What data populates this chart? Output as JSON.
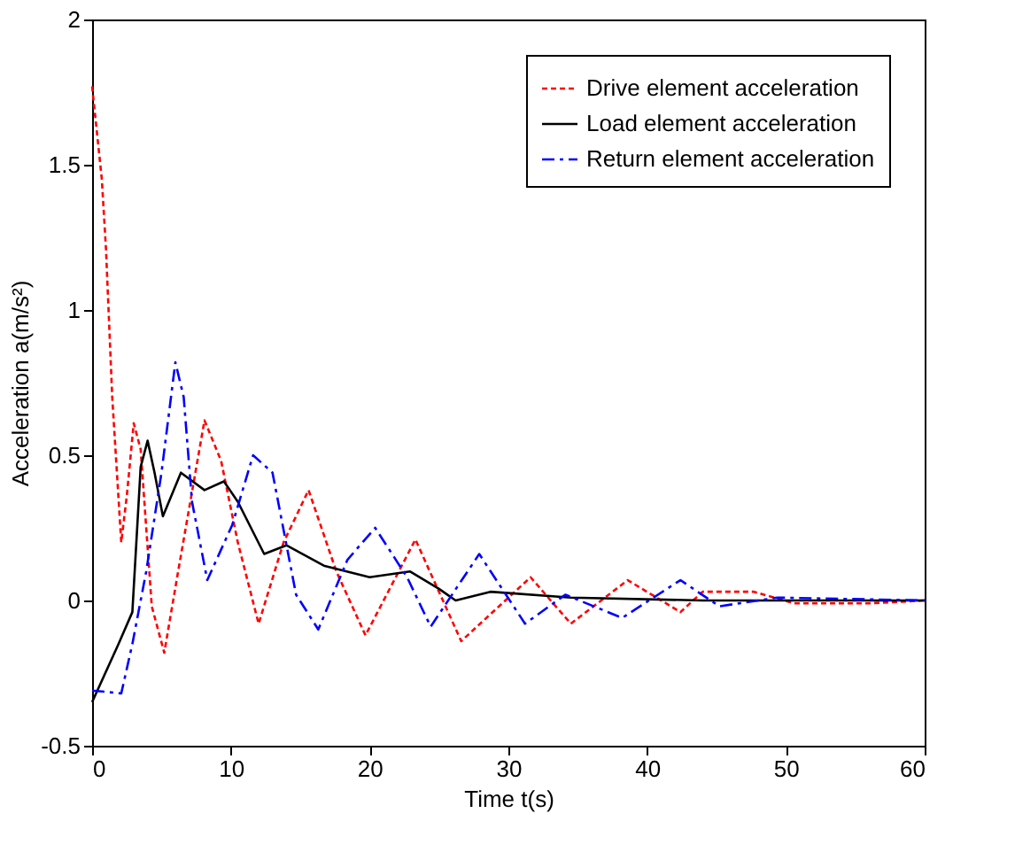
{
  "chart_data": {
    "type": "line",
    "xlabel": "Time t(s)",
    "ylabel": "Acceleration a(m/s²)",
    "xlim": [
      0,
      60
    ],
    "ylim": [
      -0.5,
      2
    ],
    "xticks": [
      0,
      10,
      20,
      30,
      40,
      50,
      60
    ],
    "yticks": [
      -0.5,
      0,
      0.5,
      1,
      1.5,
      2
    ],
    "grid": false,
    "legend": "top right",
    "marker": "none",
    "series": [
      {
        "name": "Drive element acceleration",
        "color": "#ff0000",
        "line_style": "dotted",
        "x": [
          0,
          0.7,
          1.0,
          1.45,
          2.1,
          2.5,
          3.0,
          3.5,
          4.3,
          5.2,
          6.2,
          8.1,
          9.3,
          10.5,
          12,
          13.8,
          15.6,
          17.6,
          19.7,
          23.3,
          26.6,
          31.6,
          34.5,
          38.6,
          42.4,
          44,
          47.7,
          50.6,
          55.9,
          60
        ],
        "values": [
          1.77,
          1.45,
          1.21,
          0.7,
          0.2,
          0.36,
          0.61,
          0.52,
          -0.02,
          -0.18,
          0.1,
          0.62,
          0.48,
          0.2,
          -0.08,
          0.2,
          0.38,
          0.1,
          -0.12,
          0.21,
          -0.14,
          0.08,
          -0.08,
          0.07,
          -0.04,
          0.03,
          0.03,
          -0.01,
          -0.01,
          0
        ]
      },
      {
        "name": "Load element acceleration",
        "color": "#000000",
        "line_style": "solid",
        "x": [
          0,
          1.9,
          2.9,
          3.5,
          4.0,
          4.5,
          5.1,
          6.4,
          8.1,
          9.5,
          10.5,
          12.4,
          14.0,
          16.7,
          20,
          22.9,
          25,
          26.2,
          28.7,
          34.5,
          44,
          60
        ],
        "values": [
          -0.35,
          -0.15,
          -0.04,
          0.46,
          0.55,
          0.44,
          0.29,
          0.44,
          0.38,
          0.41,
          0.34,
          0.16,
          0.19,
          0.12,
          0.08,
          0.1,
          0.04,
          0,
          0.03,
          0.01,
          0,
          0
        ]
      },
      {
        "name": "Return element acceleration",
        "color": "#0000ff",
        "line_style": "dashed",
        "x": [
          0,
          2.1,
          2.9,
          3.9,
          5.0,
          6.0,
          6.6,
          7.2,
          8.3,
          10.1,
          11.6,
          13,
          14.7,
          16.3,
          18.4,
          20.4,
          22.7,
          24.4,
          27.9,
          31.2,
          34.1,
          38.2,
          42.4,
          45.2,
          49.4,
          60
        ],
        "values": [
          -0.31,
          -0.32,
          -0.15,
          0.1,
          0.44,
          0.82,
          0.7,
          0.34,
          0.07,
          0.26,
          0.5,
          0.44,
          0.02,
          -0.1,
          0.14,
          0.25,
          0.08,
          -0.09,
          0.16,
          -0.08,
          0.02,
          -0.06,
          0.07,
          -0.02,
          0.01,
          0
        ]
      }
    ]
  }
}
